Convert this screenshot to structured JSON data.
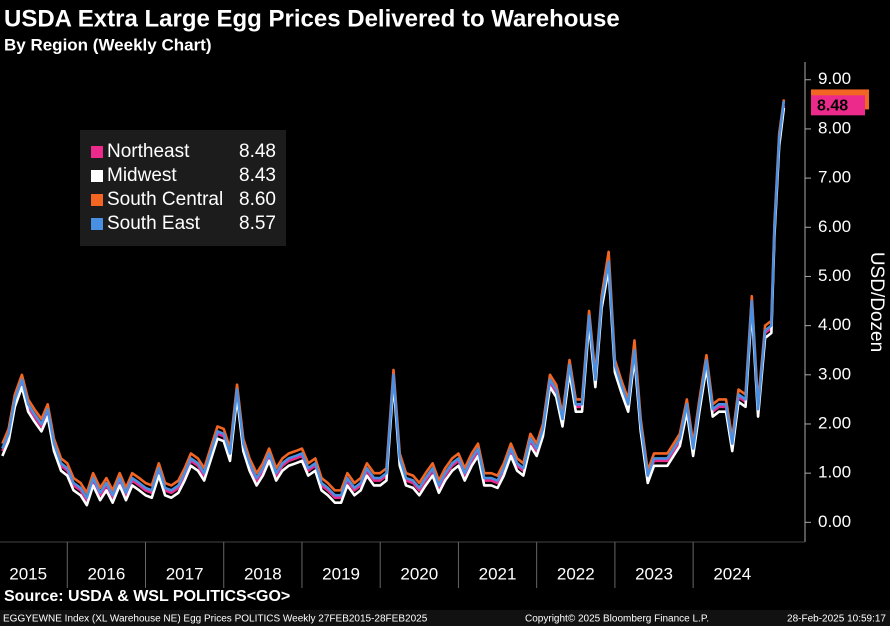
{
  "chart_data": {
    "type": "line",
    "title": "USDA Extra Large Egg Prices Delivered to Warehouse",
    "subtitle": "By Region (Weekly Chart)",
    "y_axis_label": "USD/Dozen",
    "source": "Source: USDA & WSL POLITICS<GO>",
    "footer_left": "EGGYEWNE Index (XL Warehouse NE) Egg Prices POLITICS  Weekly 27FEB2015-28FEB2025",
    "footer_center": "Copyright© 2025 Bloomberg Finance L.P.",
    "footer_right": "28-Feb-2025 10:59:17",
    "price_tag": "8.48",
    "grid": false,
    "xlim": [
      2015.14,
      2025.43
    ],
    "xticks": [
      2015,
      2016,
      2017,
      2018,
      2019,
      2020,
      2021,
      2022,
      2023,
      2024
    ],
    "ylim": [
      -0.4,
      9.3
    ],
    "yticks": [
      {
        "value": 0,
        "label": "0.00"
      },
      {
        "value": 1,
        "label": "1.00"
      },
      {
        "value": 2,
        "label": "2.00"
      },
      {
        "value": 3,
        "label": "3.00"
      },
      {
        "value": 4,
        "label": "4.00"
      },
      {
        "value": 5,
        "label": "5.00"
      },
      {
        "value": 6,
        "label": "6.00"
      },
      {
        "value": 7,
        "label": "7.00"
      },
      {
        "value": 8,
        "label": "8.00"
      },
      {
        "value": 9,
        "label": "9.00"
      }
    ],
    "x": [
      2015.17,
      2015.25,
      2015.33,
      2015.42,
      2015.5,
      2015.58,
      2015.67,
      2015.75,
      2015.83,
      2015.92,
      2016.0,
      2016.08,
      2016.17,
      2016.25,
      2016.33,
      2016.42,
      2016.5,
      2016.58,
      2016.67,
      2016.75,
      2016.83,
      2016.92,
      2017.0,
      2017.08,
      2017.17,
      2017.25,
      2017.33,
      2017.42,
      2017.5,
      2017.58,
      2017.67,
      2017.75,
      2017.83,
      2017.92,
      2018.0,
      2018.08,
      2018.17,
      2018.25,
      2018.33,
      2018.42,
      2018.5,
      2018.58,
      2018.67,
      2018.75,
      2018.83,
      2018.92,
      2019.0,
      2019.08,
      2019.17,
      2019.25,
      2019.33,
      2019.42,
      2019.5,
      2019.58,
      2019.67,
      2019.75,
      2019.83,
      2019.92,
      2020.0,
      2020.08,
      2020.17,
      2020.25,
      2020.33,
      2020.42,
      2020.5,
      2020.58,
      2020.67,
      2020.75,
      2020.83,
      2020.92,
      2021.0,
      2021.08,
      2021.17,
      2021.25,
      2021.33,
      2021.42,
      2021.5,
      2021.58,
      2021.67,
      2021.75,
      2021.83,
      2021.92,
      2022.0,
      2022.08,
      2022.17,
      2022.25,
      2022.33,
      2022.42,
      2022.5,
      2022.58,
      2022.67,
      2022.75,
      2022.83,
      2022.92,
      2023.0,
      2023.08,
      2023.17,
      2023.25,
      2023.33,
      2023.42,
      2023.5,
      2023.58,
      2023.67,
      2023.75,
      2023.83,
      2023.92,
      2024.0,
      2024.08,
      2024.17,
      2024.25,
      2024.33,
      2024.42,
      2024.5,
      2024.58,
      2024.67,
      2024.75,
      2024.83,
      2024.92,
      2025.0,
      2025.04,
      2025.1,
      2025.16
    ],
    "series": [
      {
        "name": "Northeast",
        "color": "#ec2a8c",
        "legend_value": "8.48",
        "values": [
          1.45,
          1.75,
          2.45,
          2.85,
          2.35,
          2.15,
          1.95,
          2.25,
          1.55,
          1.15,
          1.05,
          0.75,
          0.65,
          0.45,
          0.85,
          0.55,
          0.75,
          0.5,
          0.85,
          0.55,
          0.85,
          0.75,
          0.65,
          0.6,
          1.05,
          0.65,
          0.6,
          0.7,
          0.95,
          1.25,
          1.15,
          0.95,
          1.35,
          1.8,
          1.75,
          1.35,
          2.65,
          1.55,
          1.15,
          0.85,
          1.05,
          1.35,
          0.95,
          1.15,
          1.25,
          1.3,
          1.35,
          1.05,
          1.15,
          0.75,
          0.65,
          0.5,
          0.5,
          0.85,
          0.65,
          0.75,
          1.05,
          0.85,
          0.85,
          0.95,
          2.95,
          1.25,
          0.85,
          0.8,
          0.65,
          0.85,
          1.05,
          0.7,
          0.95,
          1.15,
          1.25,
          0.95,
          1.25,
          1.45,
          0.85,
          0.85,
          0.8,
          1.05,
          1.45,
          1.15,
          1.05,
          1.65,
          1.45,
          1.85,
          2.85,
          2.65,
          2.05,
          3.15,
          2.35,
          2.35,
          4.15,
          2.85,
          4.45,
          5.25,
          3.15,
          2.75,
          2.35,
          3.45,
          1.95,
          0.9,
          1.25,
          1.25,
          1.25,
          1.45,
          1.65,
          2.35,
          1.45,
          2.35,
          3.25,
          2.25,
          2.35,
          2.35,
          1.55,
          2.55,
          2.45,
          4.45,
          2.25,
          3.85,
          3.95,
          5.95,
          7.75,
          8.48
        ]
      },
      {
        "name": "Midwest",
        "color": "#ffffff",
        "legend_value": "8.43",
        "values": [
          1.35,
          1.65,
          2.35,
          2.75,
          2.25,
          2.05,
          1.85,
          2.15,
          1.45,
          1.05,
          0.95,
          0.65,
          0.55,
          0.35,
          0.75,
          0.45,
          0.65,
          0.4,
          0.75,
          0.45,
          0.75,
          0.65,
          0.55,
          0.5,
          0.95,
          0.55,
          0.5,
          0.6,
          0.85,
          1.15,
          1.05,
          0.85,
          1.25,
          1.7,
          1.65,
          1.25,
          2.55,
          1.45,
          1.05,
          0.75,
          0.95,
          1.25,
          0.85,
          1.05,
          1.15,
          1.2,
          1.25,
          0.95,
          1.05,
          0.65,
          0.55,
          0.4,
          0.4,
          0.75,
          0.55,
          0.65,
          0.95,
          0.75,
          0.75,
          0.85,
          2.85,
          1.15,
          0.75,
          0.7,
          0.55,
          0.75,
          0.95,
          0.6,
          0.85,
          1.05,
          1.15,
          0.85,
          1.15,
          1.35,
          0.75,
          0.75,
          0.7,
          0.95,
          1.35,
          1.05,
          0.95,
          1.55,
          1.35,
          1.75,
          2.75,
          2.55,
          1.95,
          3.05,
          2.25,
          2.25,
          4.05,
          2.75,
          4.35,
          5.15,
          3.05,
          2.65,
          2.25,
          3.35,
          1.85,
          0.8,
          1.15,
          1.15,
          1.15,
          1.35,
          1.55,
          2.25,
          1.35,
          2.25,
          3.15,
          2.15,
          2.25,
          2.25,
          1.45,
          2.45,
          2.35,
          4.35,
          2.15,
          3.75,
          3.85,
          5.85,
          7.65,
          8.43
        ]
      },
      {
        "name": "South Central",
        "color": "#f26522",
        "legend_value": "8.60",
        "values": [
          1.6,
          1.9,
          2.6,
          3.0,
          2.5,
          2.3,
          2.1,
          2.4,
          1.7,
          1.3,
          1.2,
          0.9,
          0.8,
          0.6,
          1.0,
          0.7,
          0.9,
          0.65,
          1.0,
          0.7,
          1.0,
          0.9,
          0.8,
          0.75,
          1.2,
          0.8,
          0.75,
          0.85,
          1.1,
          1.4,
          1.3,
          1.1,
          1.5,
          1.95,
          1.9,
          1.5,
          2.8,
          1.7,
          1.3,
          1.0,
          1.2,
          1.5,
          1.1,
          1.3,
          1.4,
          1.45,
          1.5,
          1.2,
          1.3,
          0.9,
          0.8,
          0.65,
          0.65,
          1.0,
          0.8,
          0.9,
          1.2,
          1.0,
          1.0,
          1.1,
          3.1,
          1.4,
          1.0,
          0.95,
          0.8,
          1.0,
          1.2,
          0.85,
          1.1,
          1.3,
          1.4,
          1.1,
          1.4,
          1.6,
          1.0,
          1.0,
          0.95,
          1.2,
          1.6,
          1.3,
          1.2,
          1.8,
          1.6,
          2.0,
          3.0,
          2.8,
          2.2,
          3.3,
          2.5,
          2.5,
          4.3,
          3.0,
          4.6,
          5.5,
          3.3,
          2.9,
          2.5,
          3.7,
          2.1,
          1.05,
          1.4,
          1.4,
          1.4,
          1.6,
          1.8,
          2.5,
          1.6,
          2.5,
          3.4,
          2.4,
          2.5,
          2.5,
          1.7,
          2.7,
          2.6,
          4.6,
          2.4,
          4.0,
          4.1,
          6.1,
          7.9,
          8.6
        ]
      },
      {
        "name": "South East",
        "color": "#4a90e2",
        "legend_value": "8.57",
        "values": [
          1.5,
          1.8,
          2.5,
          2.9,
          2.4,
          2.2,
          2.0,
          2.3,
          1.6,
          1.2,
          1.1,
          0.8,
          0.7,
          0.5,
          0.9,
          0.6,
          0.8,
          0.55,
          0.9,
          0.6,
          0.9,
          0.8,
          0.7,
          0.65,
          1.1,
          0.7,
          0.65,
          0.75,
          1.0,
          1.3,
          1.2,
          1.0,
          1.4,
          1.85,
          1.8,
          1.4,
          2.7,
          1.6,
          1.2,
          0.9,
          1.1,
          1.4,
          1.0,
          1.2,
          1.3,
          1.35,
          1.4,
          1.1,
          1.2,
          0.8,
          0.7,
          0.55,
          0.55,
          0.9,
          0.7,
          0.8,
          1.1,
          0.9,
          0.9,
          1.0,
          3.0,
          1.3,
          0.9,
          0.85,
          0.7,
          0.9,
          1.1,
          0.75,
          1.0,
          1.2,
          1.3,
          1.0,
          1.3,
          1.5,
          0.9,
          0.9,
          0.85,
          1.1,
          1.5,
          1.2,
          1.1,
          1.7,
          1.5,
          1.9,
          2.9,
          2.7,
          2.1,
          3.2,
          2.4,
          2.4,
          4.2,
          2.9,
          4.5,
          5.3,
          3.2,
          2.8,
          2.4,
          3.5,
          2.0,
          0.95,
          1.3,
          1.3,
          1.3,
          1.5,
          1.7,
          2.4,
          1.5,
          2.4,
          3.3,
          2.3,
          2.4,
          2.4,
          1.6,
          2.6,
          2.5,
          4.5,
          2.3,
          3.9,
          4.0,
          6.0,
          7.8,
          8.57
        ]
      }
    ]
  }
}
